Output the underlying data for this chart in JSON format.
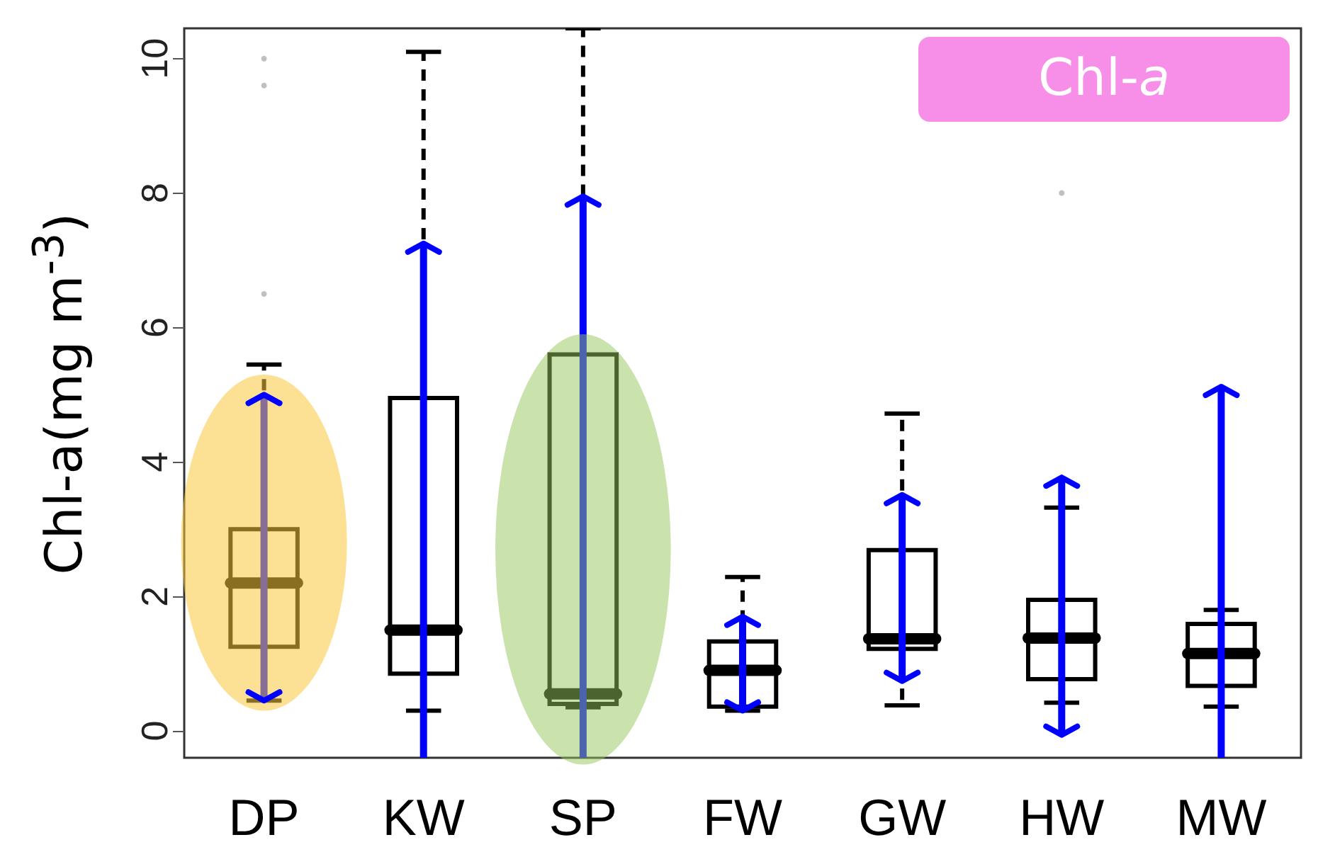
{
  "chart_data": {
    "type": "box",
    "title": "Chl-a",
    "ylabel": "Chl-a(mg m$^{-3}$)",
    "categories": [
      "DP",
      "KW",
      "SP",
      "FW",
      "GW",
      "HW",
      "MW"
    ],
    "ylim": [
      -0.4,
      10.45
    ],
    "yticks": [
      0,
      2,
      4,
      6,
      8,
      10
    ],
    "grid": false,
    "series": [
      {
        "color": "#000000",
        "boxes": [
          {
            "low": 0.45,
            "q1": 1.25,
            "median": 2.2,
            "q3": 3.0,
            "high": 5.45,
            "outliers": [
              6.5,
              9.6,
              10.0
            ]
          },
          {
            "low": 0.3,
            "q1": 0.85,
            "median": 1.5,
            "q3": 4.95,
            "high": 10.1
          },
          {
            "low": 0.35,
            "q1": 0.4,
            "median": 0.55,
            "q3": 5.6,
            "high": 10.45
          },
          {
            "low": 0.3,
            "q1": 0.36,
            "median": 0.9,
            "q3": 1.33,
            "high": 2.29
          },
          {
            "low": 0.38,
            "q1": 1.22,
            "median": 1.37,
            "q3": 2.69,
            "high": 4.72
          },
          {
            "low": 0.42,
            "q1": 0.77,
            "median": 1.38,
            "q3": 1.95,
            "high": 3.32,
            "outliers": [
              8.0
            ]
          },
          {
            "low": 0.36,
            "q1": 0.67,
            "median": 1.15,
            "q3": 1.59,
            "high": 1.8
          }
        ]
      },
      {
        "type": "bar",
        "color": "#0000ff",
        "base": [
          0.45,
          -0.4,
          -0.4,
          0.3,
          0.74,
          -0.06,
          -0.4
        ],
        "values": [
          4.55,
          7.65,
          8.35,
          1.4,
          2.77,
          3.83,
          5.52
        ]
      }
    ]
  }
}
